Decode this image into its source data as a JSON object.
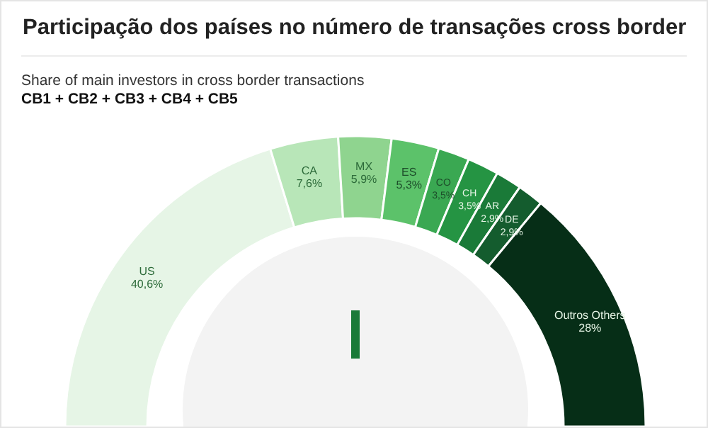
{
  "chart_data": {
    "type": "donut",
    "title": "Participação dos países no número de transações cross border",
    "subtitle": "Share of main investors in cross border transactions",
    "annotations": [
      "CB1 + CB2 + CB3 + CB4 + CB5"
    ],
    "categories": [
      "US",
      "CA",
      "MX",
      "ES",
      "CO",
      "CH",
      "AR",
      "DE",
      "Outros Others"
    ],
    "values": [
      40.6,
      7.6,
      5.9,
      5.3,
      3.5,
      3.5,
      2.9,
      2.9,
      28
    ],
    "value_labels": [
      "40,6%",
      "7,6%",
      "5,9%",
      "5,3%",
      "3,5%",
      "3,5%",
      "2,9%",
      "2,9%",
      "28%"
    ],
    "colors": [
      "#e6f5e6",
      "#b8e6b8",
      "#8fd48f",
      "#5cc26a",
      "#3aa852",
      "#259443",
      "#1a7a38",
      "#145c2e",
      "#062e17"
    ]
  }
}
